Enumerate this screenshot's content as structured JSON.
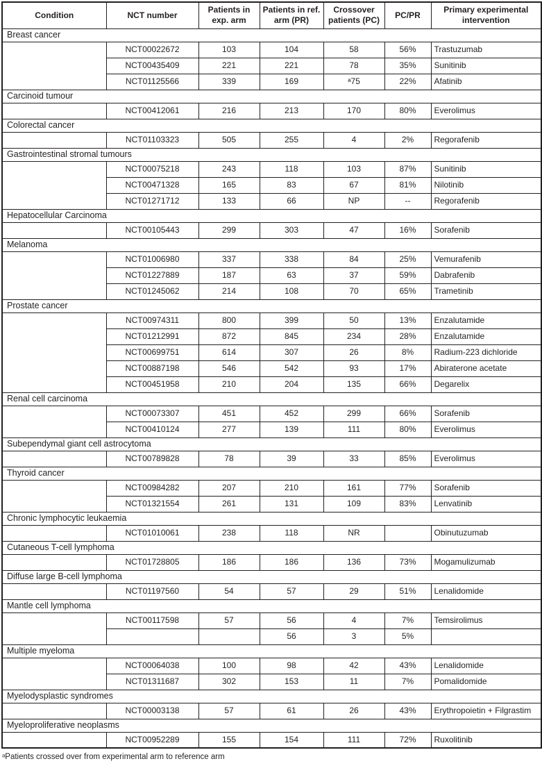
{
  "table": {
    "columns": [
      "Condition",
      "NCT number",
      "Patients in exp. arm",
      "Patients in ref. arm (PR)",
      "Crossover patients (PC)",
      "PC/PR",
      "Primary experimental intervention"
    ],
    "sections": [
      {
        "condition": "Breast cancer",
        "rows": [
          [
            "NCT00022672",
            "103",
            "104",
            "58",
            "56%",
            "Trastuzumab"
          ],
          [
            "NCT00435409",
            "221",
            "221",
            "78",
            "35%",
            "Sunitinib"
          ],
          [
            "NCT01125566",
            "339",
            "169",
            "ᵃ75",
            "22%",
            "Afatinib"
          ]
        ]
      },
      {
        "condition": "Carcinoid tumour",
        "rows": [
          [
            "NCT00412061",
            "216",
            "213",
            "170",
            "80%",
            "Everolimus"
          ]
        ]
      },
      {
        "condition": "Colorectal cancer",
        "rows": [
          [
            "NCT01103323",
            "505",
            "255",
            "4",
            "2%",
            "Regorafenib"
          ]
        ]
      },
      {
        "condition": "Gastrointestinal stromal tumours",
        "rows": [
          [
            "NCT00075218",
            "243",
            "118",
            "103",
            "87%",
            "Sunitinib"
          ],
          [
            "NCT00471328",
            "165",
            "83",
            "67",
            "81%",
            "Nilotinib"
          ],
          [
            "NCT01271712",
            "133",
            "66",
            "NP",
            "--",
            "Regorafenib"
          ]
        ]
      },
      {
        "condition": "Hepatocellular Carcinoma",
        "rows": [
          [
            "NCT00105443",
            "299",
            "303",
            "47",
            "16%",
            "Sorafenib"
          ]
        ]
      },
      {
        "condition": "Melanoma",
        "rows": [
          [
            "NCT01006980",
            "337",
            "338",
            "84",
            "25%",
            "Vemurafenib"
          ],
          [
            "NCT01227889",
            "187",
            "63",
            "37",
            "59%",
            "Dabrafenib"
          ],
          [
            "NCT01245062",
            "214",
            "108",
            "70",
            "65%",
            "Trametinib"
          ]
        ]
      },
      {
        "condition": "Prostate cancer",
        "rows": [
          [
            "NCT00974311",
            "800",
            "399",
            "50",
            "13%",
            "Enzalutamide"
          ],
          [
            "NCT01212991",
            "872",
            "845",
            "234",
            "28%",
            "Enzalutamide"
          ],
          [
            "NCT00699751",
            "614",
            "307",
            "26",
            "8%",
            "Radium-223 dichloride"
          ],
          [
            "NCT00887198",
            "546",
            "542",
            "93",
            "17%",
            "Abiraterone acetate"
          ],
          [
            "NCT00451958",
            "210",
            "204",
            "135",
            "66%",
            "Degarelix"
          ]
        ]
      },
      {
        "condition": "Renal cell carcinoma",
        "rows": [
          [
            "NCT00073307",
            "451",
            "452",
            "299",
            "66%",
            "Sorafenib"
          ],
          [
            "NCT00410124",
            "277",
            "139",
            "111",
            "80%",
            "Everolimus"
          ]
        ]
      },
      {
        "condition": "Subependymal giant cell astrocytoma",
        "rows": [
          [
            "NCT00789828",
            "78",
            "39",
            "33",
            "85%",
            "Everolimus"
          ]
        ]
      },
      {
        "condition": "Thyroid cancer",
        "rows": [
          [
            "NCT00984282",
            "207",
            "210",
            "161",
            "77%",
            "Sorafenib"
          ],
          [
            "NCT01321554",
            "261",
            "131",
            "109",
            "83%",
            "Lenvatinib"
          ]
        ]
      },
      {
        "condition": "Chronic lymphocytic leukaemia",
        "rows": [
          [
            "NCT01010061",
            "238",
            "118",
            "NR",
            "",
            "Obinutuzumab"
          ]
        ]
      },
      {
        "condition": "Cutaneous T-cell lymphoma",
        "rows": [
          [
            "NCT01728805",
            "186",
            "186",
            "136",
            "73%",
            "Mogamulizumab"
          ]
        ]
      },
      {
        "condition": "Diffuse large B-cell lymphoma",
        "rows": [
          [
            "NCT01197560",
            "54",
            "57",
            "29",
            "51%",
            "Lenalidomide"
          ]
        ]
      },
      {
        "condition": "Mantle cell lymphoma",
        "rows": [
          [
            "NCT00117598",
            "57",
            "56",
            "4",
            "7%",
            "Temsirolimus"
          ],
          [
            "",
            "",
            "56",
            "3",
            "5%",
            ""
          ]
        ]
      },
      {
        "condition": "Multiple myeloma",
        "rows": [
          [
            "NCT00064038",
            "100",
            "98",
            "42",
            "43%",
            "Lenalidomide"
          ],
          [
            "NCT01311687",
            "302",
            "153",
            "11",
            "7%",
            "Pomalidomide"
          ]
        ]
      },
      {
        "condition": "Myelodysplastic syndromes",
        "rows": [
          [
            "NCT00003138",
            "57",
            "61",
            "26",
            "43%",
            "Erythropoietin + Filgrastim"
          ]
        ]
      },
      {
        "condition": "Myeloproliferative neoplasms",
        "rows": [
          [
            "NCT00952289",
            "155",
            "154",
            "111",
            "72%",
            "Ruxolitinib"
          ]
        ]
      }
    ]
  },
  "footnote": "ᵃPatients crossed over from experimental arm to reference arm",
  "colors": {
    "text": "#231f20",
    "border": "#231f20",
    "background": "#ffffff"
  }
}
